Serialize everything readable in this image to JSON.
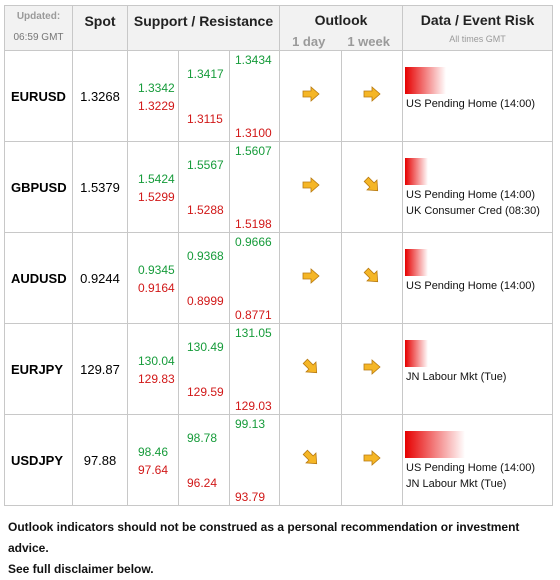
{
  "header": {
    "updated_label": "Updated:",
    "updated_time": "06:59 GMT",
    "spot": "Spot",
    "support_resistance": "Support / Resistance",
    "outlook": "Outlook",
    "outlook_1day": "1 day",
    "outlook_1week": "1 week",
    "data_event_risk": "Data / Event Risk",
    "all_times": "All times GMT"
  },
  "rows": [
    {
      "pair": "EURUSD",
      "spot": "1.3268",
      "s1": {
        "up": "1.3342",
        "down": "1.3229"
      },
      "s2": {
        "up": "1.3417",
        "down": "1.3115"
      },
      "s3": {
        "up": "1.3434",
        "down": "1.3100"
      },
      "outlook_day": "right",
      "outlook_week": "right",
      "event_intensity": 0.55,
      "events": [
        "US Pending Home (14:00)"
      ]
    },
    {
      "pair": "GBPUSD",
      "spot": "1.5379",
      "s1": {
        "up": "1.5424",
        "down": "1.5299"
      },
      "s2": {
        "up": "1.5567",
        "down": "1.5288"
      },
      "s3": {
        "up": "1.5607",
        "down": "1.5198"
      },
      "outlook_day": "right",
      "outlook_week": "down-right",
      "event_intensity": 0.3,
      "events": [
        "US Pending Home (14:00)",
        "UK Consumer Cred (08:30)"
      ]
    },
    {
      "pair": "AUDUSD",
      "spot": "0.9244",
      "s1": {
        "up": "0.9345",
        "down": "0.9164"
      },
      "s2": {
        "up": "0.9368",
        "down": "0.8999"
      },
      "s3": {
        "up": "0.9666",
        "down": "0.8771"
      },
      "outlook_day": "right",
      "outlook_week": "down-right",
      "event_intensity": 0.3,
      "events": [
        "US Pending Home (14:00)"
      ]
    },
    {
      "pair": "EURJPY",
      "spot": "129.87",
      "s1": {
        "up": "130.04",
        "down": "129.83"
      },
      "s2": {
        "up": "130.49",
        "down": "129.59"
      },
      "s3": {
        "up": "131.05",
        "down": "129.03"
      },
      "outlook_day": "down-right",
      "outlook_week": "right",
      "event_intensity": 0.3,
      "events": [
        "JN Labour Mkt (Tue)"
      ]
    },
    {
      "pair": "USDJPY",
      "spot": "97.88",
      "s1": {
        "up": "98.46",
        "down": "97.64"
      },
      "s2": {
        "up": "98.78",
        "down": "96.24"
      },
      "s3": {
        "up": "99.13",
        "down": "93.79"
      },
      "outlook_day": "down-right",
      "outlook_week": "right",
      "event_intensity": 0.8,
      "events": [
        "US Pending Home (14:00)",
        "JN Labour Mkt (Tue)"
      ]
    }
  ],
  "footer": {
    "line1": "Outlook indicators should not be construed as a personal recommendation or investment advice.",
    "line2": "See full disclaimer below."
  },
  "colors": {
    "support_green": "#169b3a",
    "resistance_red": "#d11818",
    "arrow_fill": "#f5b626",
    "event_bar": "#e60000"
  }
}
